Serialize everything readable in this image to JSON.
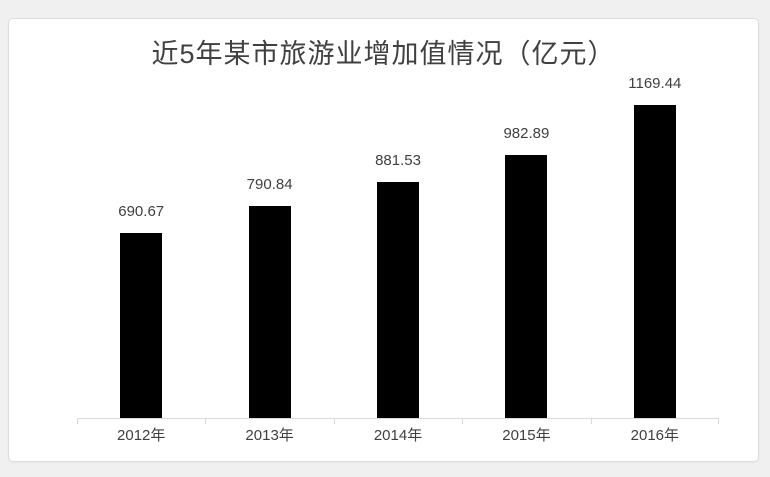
{
  "window": {
    "background_color": "#f0f0f0",
    "panel_background": "#ffffff",
    "panel_border_color": "#dcdcdc"
  },
  "chart_data": {
    "type": "bar",
    "title": "近5年某市旅游业增加值情况（亿元）",
    "categories": [
      "2012年",
      "2013年",
      "2014年",
      "2015年",
      "2016年"
    ],
    "values": [
      690.67,
      790.84,
      881.53,
      982.89,
      1169.44
    ],
    "data_labels": [
      "690.67",
      "790.84",
      "881.53",
      "982.89",
      "1169.44"
    ],
    "xlabel": "",
    "ylabel": "",
    "ylim": [
      0,
      1169.44
    ],
    "gridlines": false,
    "legend": "none",
    "y_axis_visible": false,
    "bar_color": "#000000",
    "label_color": "#404040",
    "axis_color": "#d9d9d9"
  }
}
